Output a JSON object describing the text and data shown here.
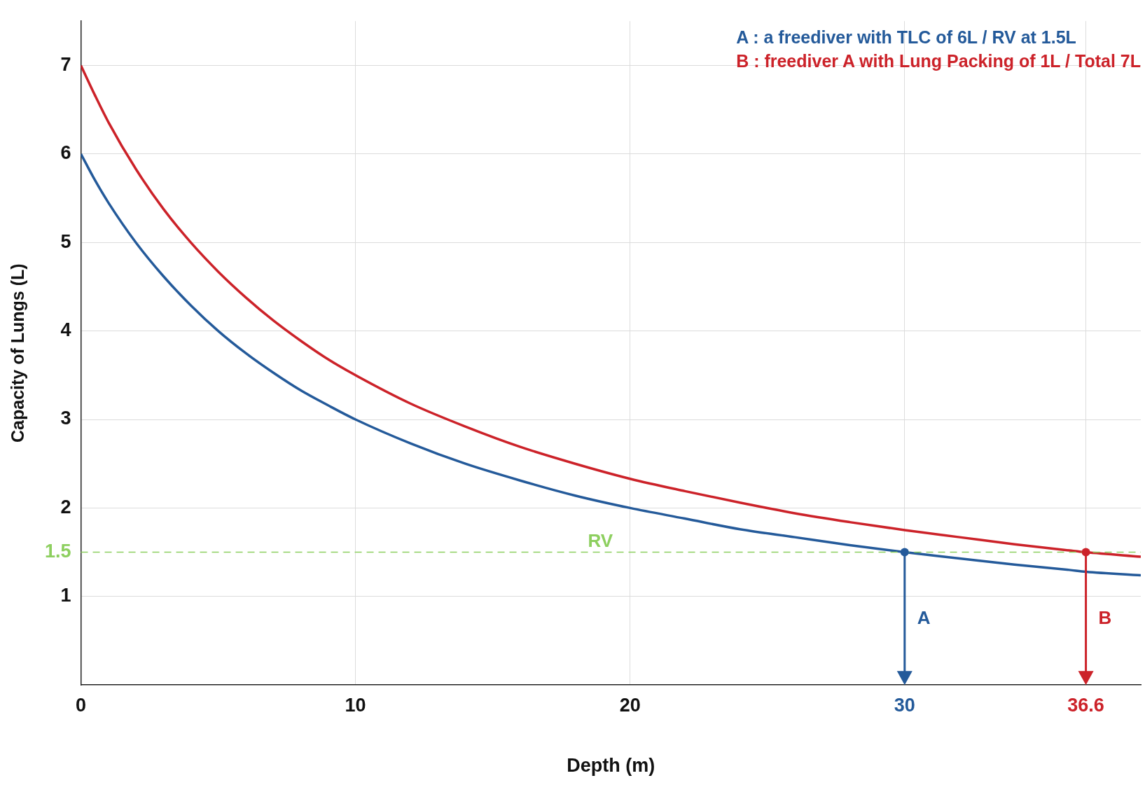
{
  "chart_data": {
    "type": "line",
    "xlabel": "Depth (m)",
    "ylabel": "Capacity of Lungs (L)",
    "x": [
      0,
      0.5,
      1,
      2,
      3,
      4,
      5,
      6,
      7,
      8,
      9,
      10,
      12,
      14,
      16,
      18,
      20,
      22,
      24,
      26,
      28,
      30,
      32,
      34,
      36,
      36.6,
      38.6
    ],
    "series": [
      {
        "name": "A : a freediver with TLC of 6L / RV at 1.5L",
        "color": "#245a9a",
        "values": [
          6,
          5.71,
          5.45,
          5,
          4.62,
          4.29,
          4,
          3.75,
          3.53,
          3.33,
          3.16,
          3,
          2.73,
          2.5,
          2.31,
          2.14,
          2,
          1.88,
          1.76,
          1.67,
          1.58,
          1.5,
          1.43,
          1.36,
          1.3,
          1.28,
          1.24
        ]
      },
      {
        "name": "B : freediver A with Lung Packing of 1L / Total 7L",
        "color": "#cc2229",
        "values": [
          7,
          6.67,
          6.36,
          5.83,
          5.38,
          5,
          4.67,
          4.38,
          4.12,
          3.89,
          3.68,
          3.5,
          3.18,
          2.92,
          2.69,
          2.5,
          2.33,
          2.19,
          2.06,
          1.94,
          1.84,
          1.75,
          1.67,
          1.59,
          1.52,
          1.5,
          1.45
        ]
      }
    ],
    "xlim": [
      0,
      38.6
    ],
    "xticks": [
      0,
      10,
      20,
      30,
      36.6
    ],
    "ylim": [
      0,
      7.5
    ],
    "yticks": [
      1,
      1.5,
      2,
      3,
      4,
      5,
      6,
      7
    ],
    "ref_lines": [
      {
        "axis": "y",
        "value": 1.5,
        "label": "RV",
        "color": "#8dcf5f",
        "line_style": "dashed"
      }
    ],
    "annotations": [
      "A",
      "B"
    ],
    "grid": true,
    "legend": "top right",
    "marker": "none",
    "line_style": "solid"
  }
}
